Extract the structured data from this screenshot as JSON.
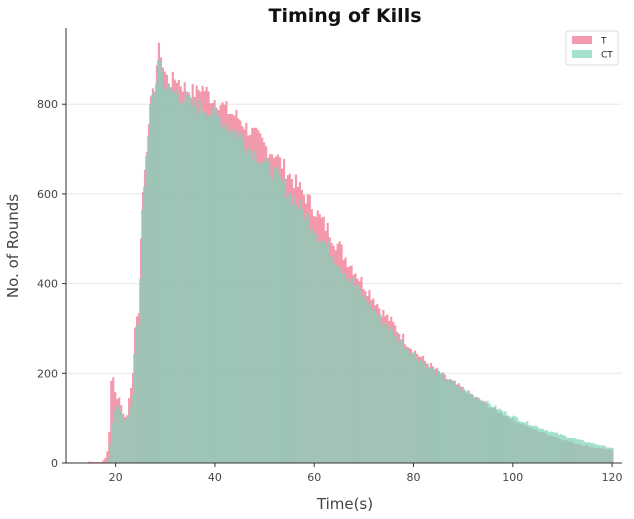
{
  "chart_data": {
    "type": "bar",
    "title": "Timing of Kills",
    "xlabel": "Time(s)",
    "ylabel": "No. of Rounds",
    "xlim": [
      10,
      122
    ],
    "ylim": [
      0,
      970
    ],
    "xticks": [
      20,
      40,
      60,
      80,
      100,
      120
    ],
    "yticks": [
      0,
      200,
      400,
      600,
      800
    ],
    "bin_width": 0.4,
    "grid": "horizontal",
    "legend_position": "top-right",
    "series": [
      {
        "name": "T",
        "color": "#f07891",
        "opacity": 0.75,
        "anchors": [
          [
            14.5,
            3
          ],
          [
            15.5,
            2
          ],
          [
            17,
            2
          ],
          [
            18,
            15
          ],
          [
            18.6,
            80
          ],
          [
            19,
            225
          ],
          [
            19.4,
            185
          ],
          [
            19.8,
            150
          ],
          [
            20.2,
            140
          ],
          [
            20.6,
            155
          ],
          [
            21,
            115
          ],
          [
            21.5,
            105
          ],
          [
            22,
            100
          ],
          [
            22.6,
            150
          ],
          [
            23.2,
            180
          ],
          [
            23.6,
            290
          ],
          [
            24,
            335
          ],
          [
            24.5,
            330
          ],
          [
            25,
            560
          ],
          [
            25.5,
            630
          ],
          [
            26,
            690
          ],
          [
            26.6,
            790
          ],
          [
            27.2,
            810
          ],
          [
            27.8,
            850
          ],
          [
            28.3,
            915
          ],
          [
            28.8,
            925
          ],
          [
            29.3,
            885
          ],
          [
            30,
            860
          ],
          [
            31,
            850
          ],
          [
            32,
            860
          ],
          [
            33,
            845
          ],
          [
            34,
            835
          ],
          [
            35,
            830
          ],
          [
            36,
            825
          ],
          [
            37,
            840
          ],
          [
            38,
            830
          ],
          [
            39,
            815
          ],
          [
            40,
            810
          ],
          [
            41,
            800
          ],
          [
            42,
            790
          ],
          [
            43,
            780
          ],
          [
            44,
            775
          ],
          [
            45,
            765
          ],
          [
            46,
            750
          ],
          [
            47,
            740
          ],
          [
            48,
            730
          ],
          [
            49,
            720
          ],
          [
            50,
            705
          ],
          [
            51,
            695
          ],
          [
            52,
            690
          ],
          [
            53,
            670
          ],
          [
            54,
            655
          ],
          [
            55,
            640
          ],
          [
            56,
            625
          ],
          [
            57,
            610
          ],
          [
            58,
            595
          ],
          [
            59,
            580
          ],
          [
            60,
            565
          ],
          [
            61,
            545
          ],
          [
            62,
            530
          ],
          [
            63,
            515
          ],
          [
            64,
            495
          ],
          [
            65,
            480
          ],
          [
            66,
            460
          ],
          [
            67,
            445
          ],
          [
            68,
            430
          ],
          [
            69,
            410
          ],
          [
            70,
            395
          ],
          [
            71,
            380
          ],
          [
            72,
            365
          ],
          [
            73,
            345
          ],
          [
            74,
            330
          ],
          [
            75,
            320
          ],
          [
            76,
            305
          ],
          [
            77,
            290
          ],
          [
            78,
            275
          ],
          [
            79,
            262
          ],
          [
            80,
            250
          ],
          [
            82,
            228
          ],
          [
            84,
            210
          ],
          [
            86,
            192
          ],
          [
            88,
            178
          ],
          [
            90,
            163
          ],
          [
            92,
            148
          ],
          [
            94,
            135
          ],
          [
            96,
            120
          ],
          [
            98,
            108
          ],
          [
            100,
            95
          ],
          [
            102,
            85
          ],
          [
            104,
            75
          ],
          [
            106,
            67
          ],
          [
            108,
            60
          ],
          [
            110,
            52
          ],
          [
            112,
            45
          ],
          [
            114,
            40
          ],
          [
            116,
            35
          ],
          [
            118,
            32
          ],
          [
            120,
            28
          ]
        ]
      },
      {
        "name": "CT",
        "color": "#7fd4ba",
        "opacity": 0.7,
        "anchors": [
          [
            17.5,
            1
          ],
          [
            18.2,
            2
          ],
          [
            18.8,
            50
          ],
          [
            19.2,
            100
          ],
          [
            19.6,
            125
          ],
          [
            20,
            135
          ],
          [
            20.5,
            125
          ],
          [
            21,
            110
          ],
          [
            21.5,
            95
          ],
          [
            22,
            95
          ],
          [
            22.6,
            120
          ],
          [
            23.2,
            160
          ],
          [
            23.6,
            280
          ],
          [
            24,
            300
          ],
          [
            24.5,
            310
          ],
          [
            25,
            540
          ],
          [
            25.5,
            625
          ],
          [
            26,
            695
          ],
          [
            26.6,
            790
          ],
          [
            27.2,
            805
          ],
          [
            27.8,
            840
          ],
          [
            28.3,
            905
          ],
          [
            28.8,
            890
          ],
          [
            29.3,
            855
          ],
          [
            30,
            835
          ],
          [
            31,
            825
          ],
          [
            32,
            830
          ],
          [
            33,
            815
          ],
          [
            34,
            810
          ],
          [
            35,
            800
          ],
          [
            36,
            795
          ],
          [
            37,
            795
          ],
          [
            38,
            790
          ],
          [
            39,
            780
          ],
          [
            40,
            775
          ],
          [
            41,
            765
          ],
          [
            42,
            755
          ],
          [
            43,
            745
          ],
          [
            44,
            740
          ],
          [
            45,
            730
          ],
          [
            46,
            715
          ],
          [
            47,
            700
          ],
          [
            48,
            690
          ],
          [
            49,
            680
          ],
          [
            50,
            665
          ],
          [
            51,
            655
          ],
          [
            52,
            645
          ],
          [
            53,
            630
          ],
          [
            54,
            615
          ],
          [
            55,
            600
          ],
          [
            56,
            585
          ],
          [
            57,
            570
          ],
          [
            58,
            555
          ],
          [
            59,
            540
          ],
          [
            60,
            525
          ],
          [
            61,
            505
          ],
          [
            62,
            490
          ],
          [
            63,
            475
          ],
          [
            64,
            460
          ],
          [
            65,
            445
          ],
          [
            66,
            428
          ],
          [
            67,
            412
          ],
          [
            68,
            398
          ],
          [
            69,
            383
          ],
          [
            70,
            368
          ],
          [
            71,
            355
          ],
          [
            72,
            340
          ],
          [
            73,
            325
          ],
          [
            74,
            312
          ],
          [
            75,
            300
          ],
          [
            76,
            288
          ],
          [
            77,
            275
          ],
          [
            78,
            263
          ],
          [
            79,
            252
          ],
          [
            80,
            242
          ],
          [
            82,
            222
          ],
          [
            84,
            205
          ],
          [
            86,
            190
          ],
          [
            88,
            176
          ],
          [
            90,
            162
          ],
          [
            92,
            150
          ],
          [
            94,
            138
          ],
          [
            96,
            126
          ],
          [
            98,
            114
          ],
          [
            100,
            103
          ],
          [
            102,
            93
          ],
          [
            104,
            84
          ],
          [
            106,
            76
          ],
          [
            108,
            68
          ],
          [
            110,
            61
          ],
          [
            112,
            55
          ],
          [
            114,
            49
          ],
          [
            116,
            44
          ],
          [
            118,
            38
          ],
          [
            120,
            33
          ]
        ]
      }
    ]
  }
}
